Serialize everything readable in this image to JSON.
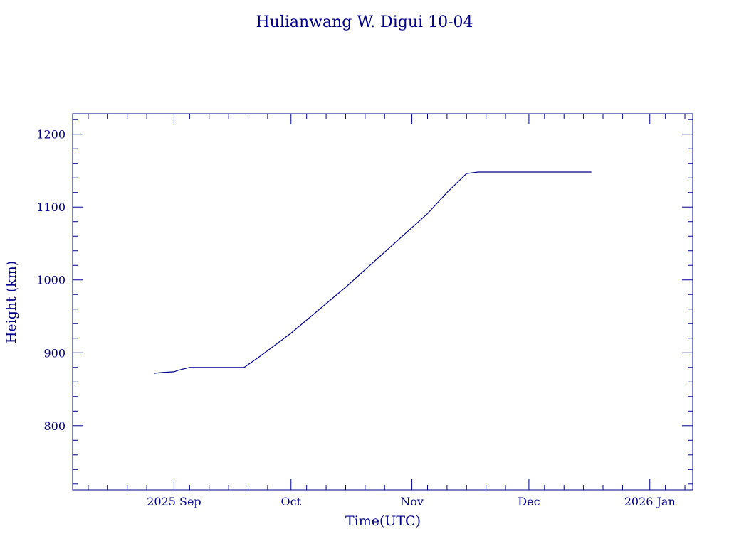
{
  "chart_data": {
    "type": "line",
    "title": "Hulianwang W. Digui 10-04",
    "xlabel": "Time(UTC)",
    "ylabel": "Height (km)",
    "xlim": [
      "2025-08-06",
      "2026-01-12"
    ],
    "ylim": [
      712,
      1228
    ],
    "x_ticks": [
      {
        "date": "2025-09-01",
        "label": "2025 Sep"
      },
      {
        "date": "2025-10-01",
        "label": "Oct"
      },
      {
        "date": "2025-11-01",
        "label": "Nov"
      },
      {
        "date": "2025-12-01",
        "label": "Dec"
      },
      {
        "date": "2026-01-01",
        "label": "2026 Jan"
      }
    ],
    "y_ticks": [
      800,
      900,
      1000,
      1100,
      1200
    ],
    "grid": false,
    "series": [
      {
        "x": [
          "2025-08-27",
          "2025-08-29",
          "2025-09-01",
          "2025-09-02",
          "2025-09-05",
          "2025-09-10",
          "2025-09-15",
          "2025-09-19",
          "2025-09-23",
          "2025-10-01",
          "2025-10-15",
          "2025-10-31",
          "2025-11-05",
          "2025-11-10",
          "2025-11-15",
          "2025-11-18",
          "2025-12-01",
          "2025-12-15",
          "2025-12-17"
        ],
        "y": [
          872,
          873,
          874,
          876,
          880,
          880,
          880,
          880,
          895,
          927,
          990,
          1067,
          1091,
          1120,
          1146,
          1148,
          1148,
          1148,
          1148
        ]
      }
    ]
  }
}
